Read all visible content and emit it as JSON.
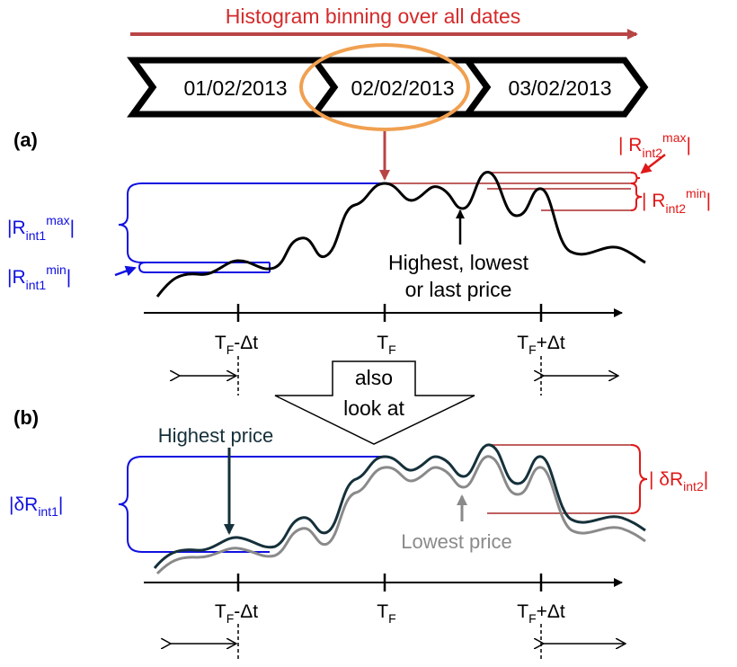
{
  "header": {
    "title": "Histogram binning over all dates",
    "dates": [
      "01/02/2013",
      "02/02/2013",
      "03/02/2013"
    ]
  },
  "panel_a": {
    "label": "(a)",
    "left_max": {
      "pre": "|R",
      "sub": "int1",
      "sup": "max",
      "post": "|"
    },
    "left_min": {
      "pre": "|R",
      "sub": "int1",
      "sup": "min",
      "post": "|"
    },
    "right_max": {
      "pre": "| R",
      "sub": "int2",
      "sup": "max",
      "post": "|"
    },
    "right_min": {
      "pre": "| R",
      "sub": "int2",
      "sup": "min",
      "post": "|"
    },
    "annotation_line1": "Highest, lowest",
    "annotation_line2": "or last price",
    "ticks": [
      {
        "pre": "T",
        "sub": "F",
        "post": "-Δt"
      },
      {
        "pre": "T",
        "sub": "F",
        "post": ""
      },
      {
        "pre": "T",
        "sub": "F",
        "post": "+Δt"
      }
    ]
  },
  "transition": {
    "line1": "also",
    "line2": "look at"
  },
  "panel_b": {
    "label": "(b)",
    "highest_label": "Highest price",
    "lowest_label": "Lowest price",
    "left": {
      "pre": "|δR",
      "sub": "int1",
      "post": "|"
    },
    "right": {
      "pre": "| δR",
      "sub": "int2",
      "post": "|"
    },
    "ticks": [
      {
        "pre": "T",
        "sub": "F",
        "post": "-Δt"
      },
      {
        "pre": "T",
        "sub": "F",
        "post": ""
      },
      {
        "pre": "T",
        "sub": "F",
        "post": "+Δt"
      }
    ]
  },
  "colors": {
    "title_red": "#d42a2a",
    "arrow_red": "#b84545",
    "orange_ring": "#f0a050",
    "blue": "#1010e0",
    "red_label": "#e01818",
    "dark_series": "#15303a",
    "gray_series": "#8a8a8a"
  }
}
